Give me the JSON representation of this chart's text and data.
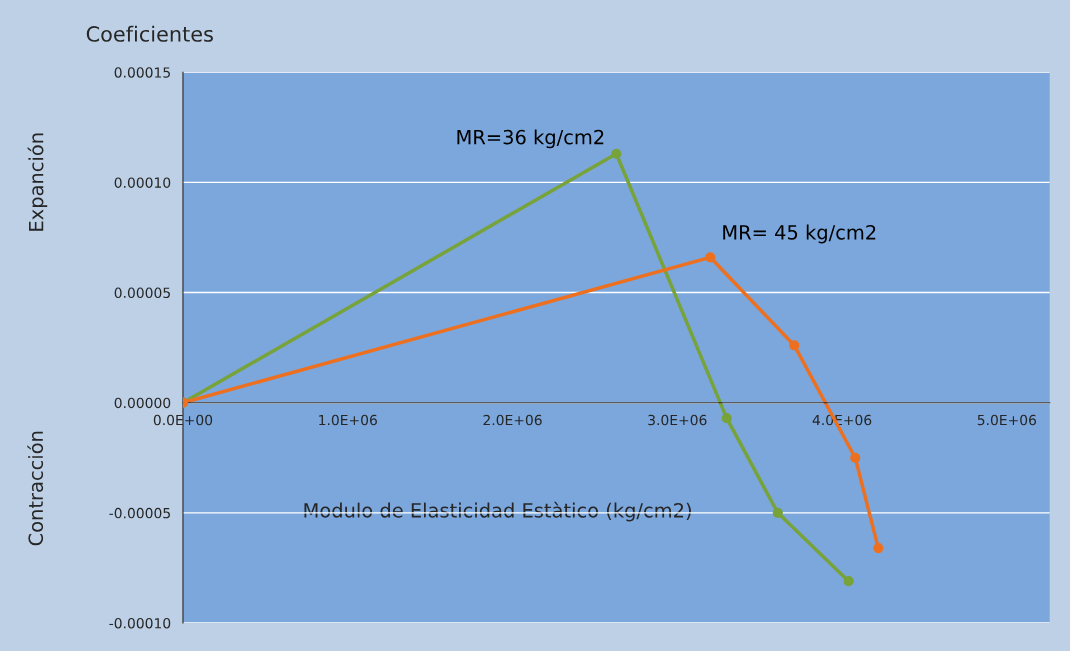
{
  "chart_data": {
    "type": "line",
    "title": "Coeficientes",
    "xlabel": "Modulo de Elasticidad Estàtico (kg/cm2)",
    "annotations": [
      "Expanción",
      "Contracción"
    ],
    "series": [
      {
        "name": "MR=36 kg/cm2",
        "color": "#77a33a",
        "x": [
          0,
          2630000,
          3300000,
          3610000,
          4040000
        ],
        "values": [
          0,
          0.000113,
          -7e-06,
          -5e-05,
          -8.1e-05
        ]
      },
      {
        "name": "MR= 45 kg/cm2",
        "color": "#ed7020",
        "x": [
          0,
          3200000,
          3710000,
          4080000,
          4220000
        ],
        "values": [
          0,
          6.6e-05,
          2.6e-05,
          -2.5e-05,
          -6.6e-05
        ]
      }
    ],
    "xlim": [
      0,
      5260000
    ],
    "ylim": [
      -0.0001,
      0.00015
    ],
    "xticks": [
      {
        "value": 0,
        "label": "0.0E+00"
      },
      {
        "value": 1000000,
        "label": "1.0E+06"
      },
      {
        "value": 2000000,
        "label": "2.0E+06"
      },
      {
        "value": 3000000,
        "label": "3.0E+06"
      },
      {
        "value": 4000000,
        "label": "4.0E+06"
      },
      {
        "value": 5000000,
        "label": "5.0E+06"
      }
    ],
    "yticks": [
      {
        "value": -0.0001,
        "label": "-0.00010"
      },
      {
        "value": -5e-05,
        "label": "-0.00005"
      },
      {
        "value": 0,
        "label": "0.00000"
      },
      {
        "value": 5e-05,
        "label": "0.00005"
      },
      {
        "value": 0.0001,
        "label": "0.00010"
      },
      {
        "value": 0.00015,
        "label": "0.00015"
      }
    ],
    "grid": "y",
    "legend": false,
    "marker": "circle",
    "line_style": "solid"
  }
}
